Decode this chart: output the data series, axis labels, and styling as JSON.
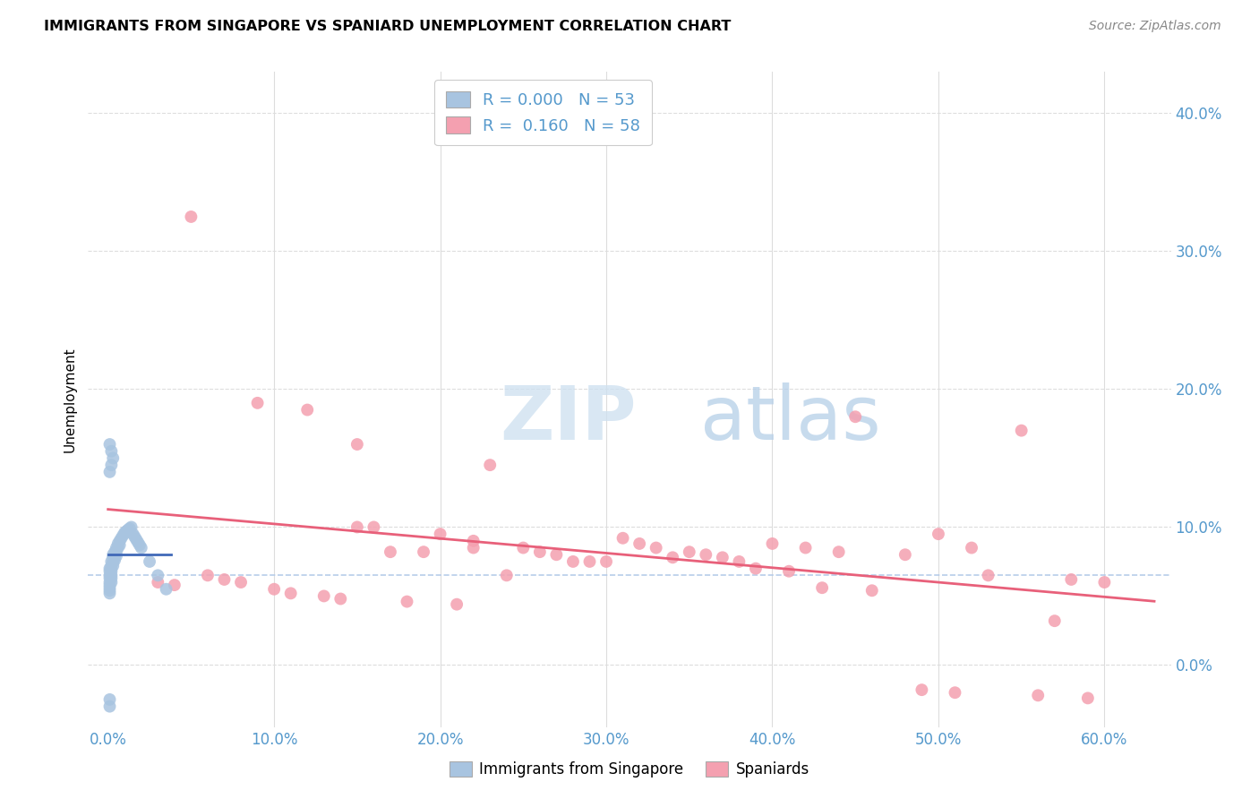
{
  "title": "IMMIGRANTS FROM SINGAPORE VS SPANIARD UNEMPLOYMENT CORRELATION CHART",
  "source": "Source: ZipAtlas.com",
  "xlabel_vals": [
    0.0,
    0.1,
    0.2,
    0.3,
    0.4,
    0.5,
    0.6
  ],
  "ylabel": "Unemployment",
  "ylim": [
    -0.045,
    0.43
  ],
  "xlim": [
    -0.012,
    0.64
  ],
  "blue_R": 0.0,
  "blue_N": 53,
  "pink_R": 0.16,
  "pink_N": 58,
  "blue_color": "#a8c4e0",
  "pink_color": "#f4a0b0",
  "blue_line_color": "#4169b8",
  "pink_line_color": "#e8607a",
  "dashed_line_color": "#b0c8e8",
  "grid_color": "#dddddd",
  "tick_color": "#5599cc",
  "blue_scatter_x": [
    0.001,
    0.001,
    0.001,
    0.001,
    0.001,
    0.001,
    0.001,
    0.001,
    0.001,
    0.002,
    0.002,
    0.002,
    0.002,
    0.002,
    0.002,
    0.002,
    0.003,
    0.003,
    0.003,
    0.003,
    0.004,
    0.004,
    0.004,
    0.005,
    0.005,
    0.005,
    0.006,
    0.006,
    0.007,
    0.007,
    0.008,
    0.009,
    0.01,
    0.011,
    0.012,
    0.013,
    0.014,
    0.015,
    0.016,
    0.017,
    0.018,
    0.019,
    0.02,
    0.025,
    0.03,
    0.035,
    0.001,
    0.001,
    0.002,
    0.002,
    0.003,
    0.001,
    0.001
  ],
  "blue_scatter_y": [
    0.07,
    0.068,
    0.065,
    0.063,
    0.06,
    0.058,
    0.056,
    0.054,
    0.052,
    0.075,
    0.072,
    0.07,
    0.068,
    0.065,
    0.063,
    0.06,
    0.08,
    0.078,
    0.075,
    0.072,
    0.082,
    0.079,
    0.076,
    0.085,
    0.082,
    0.079,
    0.088,
    0.085,
    0.09,
    0.087,
    0.092,
    0.094,
    0.096,
    0.097,
    0.098,
    0.099,
    0.1,
    0.095,
    0.093,
    0.091,
    0.089,
    0.087,
    0.085,
    0.075,
    0.065,
    0.055,
    0.16,
    0.14,
    0.155,
    0.145,
    0.15,
    -0.025,
    -0.03
  ],
  "pink_scatter_x": [
    0.05,
    0.09,
    0.12,
    0.15,
    0.15,
    0.17,
    0.19,
    0.2,
    0.22,
    0.22,
    0.23,
    0.25,
    0.26,
    0.27,
    0.28,
    0.29,
    0.3,
    0.31,
    0.32,
    0.33,
    0.35,
    0.36,
    0.37,
    0.38,
    0.4,
    0.42,
    0.44,
    0.45,
    0.48,
    0.5,
    0.52,
    0.55,
    0.58,
    0.6,
    0.03,
    0.04,
    0.06,
    0.07,
    0.08,
    0.1,
    0.11,
    0.13,
    0.14,
    0.16,
    0.18,
    0.21,
    0.24,
    0.34,
    0.39,
    0.41,
    0.43,
    0.46,
    0.49,
    0.51,
    0.53,
    0.56,
    0.57,
    0.59
  ],
  "pink_scatter_y": [
    0.325,
    0.19,
    0.185,
    0.16,
    0.1,
    0.082,
    0.082,
    0.095,
    0.09,
    0.085,
    0.145,
    0.085,
    0.082,
    0.08,
    0.075,
    0.075,
    0.075,
    0.092,
    0.088,
    0.085,
    0.082,
    0.08,
    0.078,
    0.075,
    0.088,
    0.085,
    0.082,
    0.18,
    0.08,
    0.095,
    0.085,
    0.17,
    0.062,
    0.06,
    0.06,
    0.058,
    0.065,
    0.062,
    0.06,
    0.055,
    0.052,
    0.05,
    0.048,
    0.1,
    0.046,
    0.044,
    0.065,
    0.078,
    0.07,
    0.068,
    0.056,
    0.054,
    -0.018,
    -0.02,
    0.065,
    -0.022,
    0.032,
    -0.024
  ]
}
